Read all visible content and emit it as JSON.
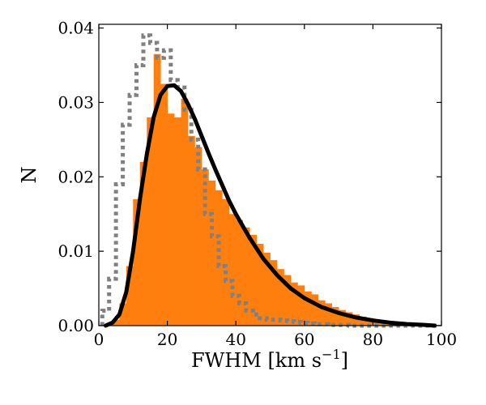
{
  "chart_data": {
    "type": "bar",
    "title": "",
    "xlabel": "FWHM [km s",
    "xlabel_superscript": "−1",
    "xlabel_suffix": "]",
    "ylabel": "N",
    "xlim": [
      0,
      100
    ],
    "ylim": [
      0,
      0.0405
    ],
    "x_ticks": [
      "0",
      "20",
      "40",
      "60",
      "80",
      "100"
    ],
    "y_ticks": [
      "0.00",
      "0.01",
      "0.02",
      "0.03",
      "0.04"
    ],
    "grid": false,
    "legend": "none",
    "colors": {
      "histogram": "#ff7f0e",
      "fit_curve": "#000000",
      "comparison": "#808080"
    },
    "histogram": {
      "bin_edges": [
        0,
        2,
        4,
        6,
        8,
        10,
        12,
        14,
        16,
        18,
        20,
        22,
        24,
        26,
        28,
        30,
        32,
        34,
        36,
        38,
        40,
        42,
        44,
        46,
        48,
        50,
        52,
        54,
        56,
        58,
        60,
        62,
        64,
        66,
        68,
        70,
        72,
        74,
        76,
        78,
        80,
        82,
        84,
        86,
        88,
        90,
        92,
        94,
        96,
        98,
        100
      ],
      "values": [
        0.0,
        0.0002,
        0.0008,
        0.003,
        0.008,
        0.017,
        0.022,
        0.028,
        0.0365,
        0.0325,
        0.0285,
        0.028,
        0.0305,
        0.0255,
        0.024,
        0.021,
        0.0195,
        0.0182,
        0.017,
        0.015,
        0.0142,
        0.0132,
        0.0122,
        0.011,
        0.0098,
        0.0088,
        0.0076,
        0.0068,
        0.0058,
        0.0054,
        0.0046,
        0.0042,
        0.0034,
        0.003,
        0.0025,
        0.0021,
        0.0018,
        0.0015,
        0.0012,
        0.001,
        0.0008,
        0.0006,
        0.0005,
        0.0004,
        0.0003,
        0.0003,
        0.0002,
        0.0002,
        0.0001,
        0.0001
      ]
    },
    "fit_curve": {
      "x": [
        2,
        4,
        6,
        8,
        10,
        12,
        14,
        16,
        18,
        20,
        22,
        24,
        26,
        28,
        30,
        32,
        34,
        36,
        38,
        40,
        44,
        48,
        52,
        56,
        60,
        65,
        70,
        75,
        80,
        85,
        90,
        95,
        98
      ],
      "y": [
        0.0,
        0.0004,
        0.0015,
        0.0045,
        0.01,
        0.017,
        0.023,
        0.028,
        0.031,
        0.0322,
        0.0323,
        0.0315,
        0.0298,
        0.0278,
        0.0255,
        0.0232,
        0.021,
        0.0189,
        0.0168,
        0.015,
        0.0118,
        0.009,
        0.0068,
        0.005,
        0.0037,
        0.0025,
        0.0017,
        0.0011,
        0.0007,
        0.0004,
        0.0002,
        0.0001,
        0.0
      ]
    },
    "comparison_step": {
      "bin_edges": [
        1,
        3,
        5,
        7,
        9,
        11,
        13,
        15,
        17,
        19,
        21,
        23,
        25,
        27,
        29,
        31,
        33,
        35,
        37,
        39,
        41,
        43,
        45,
        47,
        49,
        51,
        53,
        55,
        57,
        59,
        61,
        63,
        65,
        67,
        69,
        71,
        73,
        75,
        77,
        79,
        81,
        83,
        85,
        87,
        89,
        91,
        93,
        95,
        97,
        99
      ],
      "values": [
        0.002,
        0.0063,
        0.019,
        0.027,
        0.031,
        0.035,
        0.039,
        0.038,
        0.036,
        0.037,
        0.033,
        0.032,
        0.029,
        0.025,
        0.021,
        0.015,
        0.012,
        0.008,
        0.006,
        0.004,
        0.003,
        0.002,
        0.0015,
        0.001,
        0.0008,
        0.0008,
        0.0007,
        0.0006,
        0.0005,
        0.0004,
        0.0003,
        0.0002,
        0.0002,
        0.0001,
        0.0001,
        0.0001,
        0.0,
        0.0,
        0.0,
        0.0,
        0.0,
        0.0,
        0.0,
        0.0,
        0.0,
        0.0,
        0.0,
        0.0,
        0.0
      ]
    }
  }
}
